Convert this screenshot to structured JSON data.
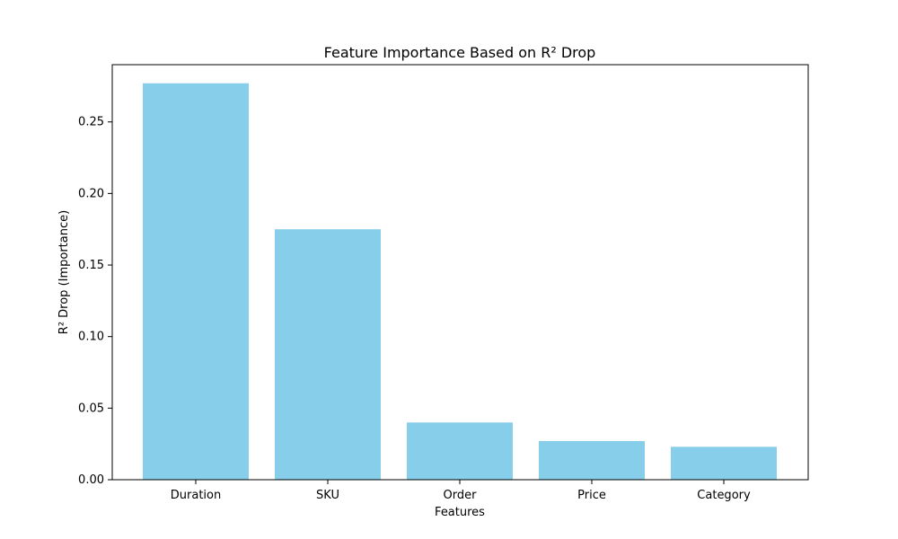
{
  "chart_data": {
    "type": "bar",
    "title": "Feature Importance Based on R² Drop",
    "xlabel": "Features",
    "ylabel": "R² Drop (Importance)",
    "categories": [
      "Duration",
      "SKU",
      "Order",
      "Price",
      "Category"
    ],
    "values": [
      0.277,
      0.175,
      0.04,
      0.027,
      0.023
    ],
    "ylim": [
      0,
      0.29
    ],
    "yticks": [
      0.0,
      0.05,
      0.1,
      0.15,
      0.2,
      0.25
    ],
    "ytick_labels": [
      "0.00",
      "0.05",
      "0.10",
      "0.15",
      "0.20",
      "0.25"
    ],
    "grid": false,
    "colors": {
      "bar": "#87ceeb",
      "axis": "#000000",
      "background": "#ffffff"
    }
  }
}
